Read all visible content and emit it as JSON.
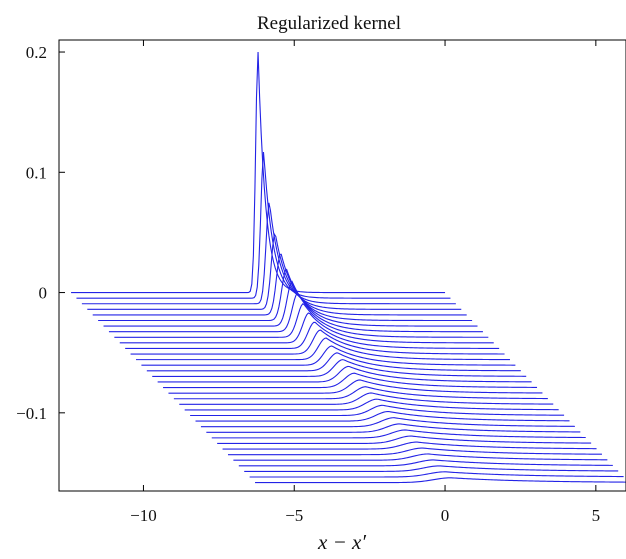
{
  "chart_data": {
    "type": "line",
    "title": "Regularized kernel",
    "xlabel": "x − x′",
    "ylabel": "",
    "xlim": [
      -12.8,
      6.0
    ],
    "ylim": [
      -0.165,
      0.21
    ],
    "xticks": [
      -10,
      -5,
      0,
      5
    ],
    "xtick_labels": [
      "−10",
      "−5",
      "0",
      "5"
    ],
    "yticks": [
      0.2,
      0.1,
      0,
      -0.1
    ],
    "ytick_labels": [
      "0.2",
      "0.1",
      "0",
      "−0.1"
    ],
    "grid": false,
    "series_color": "#2323e6",
    "waterfall": {
      "num_curves": 35,
      "first_curve": {
        "x_start": -12.4,
        "x_end": 0.0,
        "baseline": 0.0,
        "peak_x": -6.2,
        "peak_height": 0.2
      },
      "last_curve": {
        "x_start": -6.3,
        "x_end": 6.1,
        "baseline": -0.158,
        "peak_x": 0.2,
        "peak_height": 0.004
      },
      "peak_heights": [
        0.2,
        0.122,
        0.085,
        0.064,
        0.052,
        0.043,
        0.037,
        0.032,
        0.028,
        0.025,
        0.022,
        0.02,
        0.018,
        0.016,
        0.015,
        0.014,
        0.013,
        0.012,
        0.011,
        0.01,
        0.0095,
        0.009,
        0.0085,
        0.008,
        0.0075,
        0.007,
        0.0066,
        0.0062,
        0.0058,
        0.0055,
        0.0052,
        0.0049,
        0.0046,
        0.0043,
        0.004
      ]
    }
  }
}
